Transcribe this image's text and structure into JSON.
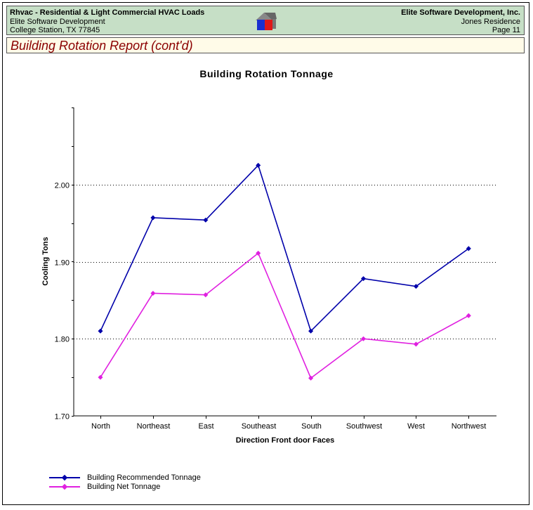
{
  "header": {
    "app_title": "Rhvac - Residential & Light Commercial HVAC Loads",
    "company_left": "Elite Software Development",
    "city_left": "College Station, TX 77845",
    "company_right": "Elite Software Development, Inc.",
    "project": "Jones Residence",
    "page": "Page 11"
  },
  "report_title": "Building Rotation Report (cont'd)",
  "chart_data": {
    "type": "line",
    "title": "Building Rotation Tonnage",
    "xlabel": "Direction Front door Faces",
    "ylabel": "Cooling Tons",
    "categories": [
      "North",
      "Northeast",
      "East",
      "Southeast",
      "South",
      "Southwest",
      "West",
      "Northwest"
    ],
    "ylim": [
      1.7,
      2.1
    ],
    "yticks": [
      "1.70",
      "1.80",
      "1.90",
      "2.00"
    ],
    "grid": "horizontal dotted",
    "legend_position": "bottom-left",
    "series": [
      {
        "name": "Building Recommended Tonnage",
        "color": "#0000aa",
        "values": [
          1.81,
          1.957,
          1.954,
          2.025,
          1.81,
          1.878,
          1.868,
          1.917
        ]
      },
      {
        "name": "Building Net Tonnage",
        "color": "#e020e0",
        "values": [
          1.75,
          1.859,
          1.857,
          1.911,
          1.749,
          1.8,
          1.793,
          1.83
        ]
      }
    ]
  }
}
